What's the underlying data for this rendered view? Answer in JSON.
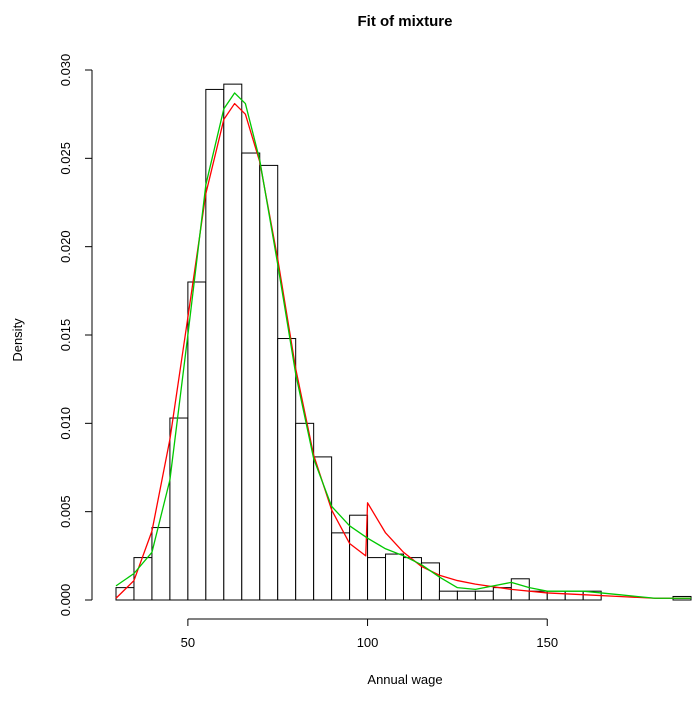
{
  "chart_data": {
    "type": "histogram",
    "title": "Fit of mixture",
    "xlabel": "Annual wage",
    "ylabel": "Density",
    "xlim": [
      30,
      190
    ],
    "ylim": [
      0,
      0.03
    ],
    "x_ticks": [
      50,
      100,
      150
    ],
    "x_tick_labels": [
      "50",
      "100",
      "150"
    ],
    "y_ticks": [
      0.0,
      0.005,
      0.01,
      0.015,
      0.02,
      0.025,
      0.03
    ],
    "y_tick_labels": [
      "0.000",
      "0.005",
      "0.010",
      "0.015",
      "0.020",
      "0.025",
      "0.030"
    ],
    "grid": false,
    "legend": null,
    "bins": [
      {
        "x0": 30,
        "x1": 35,
        "density": 0.0007
      },
      {
        "x0": 35,
        "x1": 40,
        "density": 0.0024
      },
      {
        "x0": 40,
        "x1": 45,
        "density": 0.0041
      },
      {
        "x0": 45,
        "x1": 50,
        "density": 0.0103
      },
      {
        "x0": 50,
        "x1": 55,
        "density": 0.018
      },
      {
        "x0": 55,
        "x1": 60,
        "density": 0.0289
      },
      {
        "x0": 60,
        "x1": 65,
        "density": 0.0292
      },
      {
        "x0": 65,
        "x1": 70,
        "density": 0.0253
      },
      {
        "x0": 70,
        "x1": 75,
        "density": 0.0246
      },
      {
        "x0": 75,
        "x1": 80,
        "density": 0.0148
      },
      {
        "x0": 80,
        "x1": 85,
        "density": 0.01
      },
      {
        "x0": 85,
        "x1": 90,
        "density": 0.0081
      },
      {
        "x0": 90,
        "x1": 95,
        "density": 0.0038
      },
      {
        "x0": 95,
        "x1": 100,
        "density": 0.0048
      },
      {
        "x0": 100,
        "x1": 105,
        "density": 0.0024
      },
      {
        "x0": 105,
        "x1": 110,
        "density": 0.0026
      },
      {
        "x0": 110,
        "x1": 115,
        "density": 0.0024
      },
      {
        "x0": 115,
        "x1": 120,
        "density": 0.0021
      },
      {
        "x0": 120,
        "x1": 125,
        "density": 0.0005
      },
      {
        "x0": 125,
        "x1": 130,
        "density": 0.0005
      },
      {
        "x0": 130,
        "x1": 135,
        "density": 0.0005
      },
      {
        "x0": 135,
        "x1": 140,
        "density": 0.0007
      },
      {
        "x0": 140,
        "x1": 145,
        "density": 0.0012
      },
      {
        "x0": 145,
        "x1": 150,
        "density": 0.0005
      },
      {
        "x0": 150,
        "x1": 155,
        "density": 0.0005
      },
      {
        "x0": 155,
        "x1": 160,
        "density": 0.0005
      },
      {
        "x0": 160,
        "x1": 165,
        "density": 0.0005
      },
      {
        "x0": 185,
        "x1": 190,
        "density": 0.0002
      }
    ],
    "series": [
      {
        "type": "line",
        "color": "#ff0000",
        "x": [
          30,
          35,
          40,
          45,
          50,
          55,
          60,
          63,
          66,
          70,
          75,
          80,
          85,
          90,
          95,
          99.5,
          100,
          105,
          110,
          115,
          120,
          125,
          130,
          140,
          150,
          160,
          170,
          180,
          190
        ],
        "y": [
          0.0001,
          0.0011,
          0.0039,
          0.0091,
          0.016,
          0.023,
          0.0272,
          0.0281,
          0.0275,
          0.0248,
          0.0193,
          0.0131,
          0.0082,
          0.0051,
          0.0032,
          0.0025,
          0.0055,
          0.0038,
          0.0027,
          0.0019,
          0.0014,
          0.0011,
          0.0009,
          0.0006,
          0.0004,
          0.0003,
          0.0002,
          0.0001,
          0.0001
        ]
      },
      {
        "type": "line",
        "color": "#00c800",
        "x": [
          30,
          35,
          40,
          45,
          50,
          55,
          60,
          63,
          66,
          70,
          75,
          80,
          85,
          90,
          95,
          100,
          105,
          110,
          115,
          120,
          125,
          130,
          135,
          140,
          145,
          150,
          155,
          160,
          165,
          170,
          175,
          180,
          185,
          190
        ],
        "y": [
          0.0008,
          0.0015,
          0.0027,
          0.0068,
          0.015,
          0.0235,
          0.0278,
          0.0287,
          0.0281,
          0.0249,
          0.019,
          0.0128,
          0.008,
          0.0053,
          0.0042,
          0.0035,
          0.0029,
          0.0025,
          0.002,
          0.0013,
          0.0007,
          0.0006,
          0.0008,
          0.001,
          0.0007,
          0.0005,
          0.0005,
          0.0005,
          0.0004,
          0.0003,
          0.0002,
          0.0001,
          0.0001,
          0.0001
        ]
      }
    ]
  }
}
